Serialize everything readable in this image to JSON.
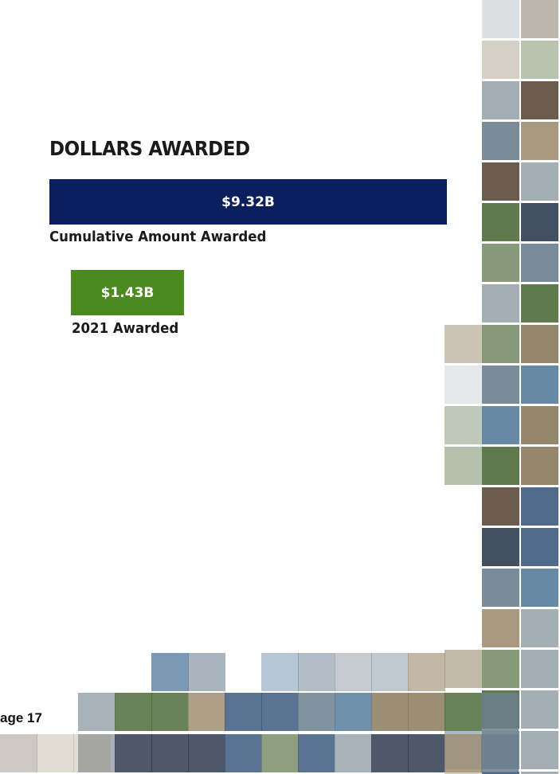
{
  "section": {
    "title": "DOLLARS AWARDED",
    "cumulative": {
      "amount": "$9.32B",
      "label": "Cumulative Amount Awarded"
    },
    "annual": {
      "amount": "$1.43B",
      "label": "2021 Awarded"
    }
  },
  "footer": {
    "page": "age 17"
  }
}
